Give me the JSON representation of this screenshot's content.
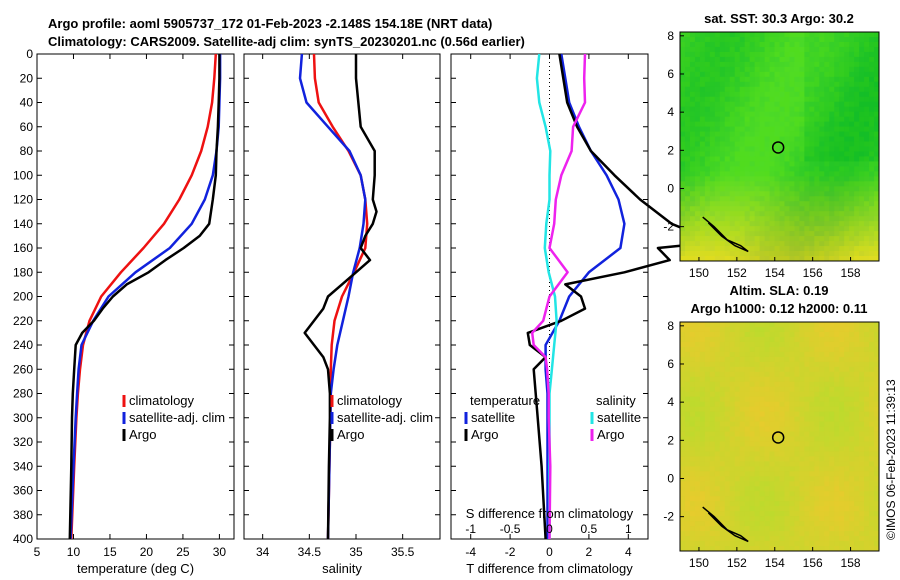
{
  "title_line1": "Argo profile: aoml 5905737_172 01-Feb-2023 -2.148S 154.18E (NRT data)",
  "title_line2": "Climatology: CARS2009. Satellite-adj clim: synTS_20230201.nc (0.56d earlier)",
  "copyright": "©IMOS 06-Feb-2023 11:39:13",
  "colors": {
    "clim": "#ee1111",
    "sat": "#1122dd",
    "argo": "#000000",
    "s_sat": "#22e5e5",
    "s_argo": "#ee22ee"
  },
  "chart_data": [
    {
      "type": "line",
      "id": "temperature",
      "xlabel": "temperature (deg C)",
      "ylabel": "",
      "xlim": [
        5,
        32
      ],
      "ylim": [
        400,
        0
      ],
      "xticks": [
        "5",
        "10",
        "15",
        "20",
        "25",
        "30"
      ],
      "yticks": [
        "0",
        "20",
        "40",
        "60",
        "80",
        "100",
        "120",
        "140",
        "160",
        "180",
        "200",
        "220",
        "240",
        "260",
        "280",
        "300",
        "320",
        "340",
        "360",
        "380",
        "400"
      ],
      "legend": [
        "climatology",
        "satellite-adj. clim",
        "Argo"
      ],
      "series": [
        {
          "name": "climatology",
          "depth": [
            0,
            20,
            40,
            60,
            80,
            100,
            120,
            140,
            160,
            180,
            200,
            220,
            240,
            260,
            280,
            300,
            340,
            400
          ],
          "values": [
            29.5,
            29.3,
            29,
            28.4,
            27.5,
            26.2,
            24.5,
            22.4,
            19.6,
            16.5,
            13.8,
            12.2,
            11.3,
            10.9,
            10.6,
            10.4,
            10.1,
            9.7
          ]
        },
        {
          "name": "satellite-adj. clim",
          "depth": [
            0,
            20,
            40,
            60,
            80,
            100,
            120,
            140,
            160,
            180,
            200,
            220,
            240,
            260,
            280,
            300,
            340,
            400
          ],
          "values": [
            30.1,
            30.1,
            30,
            29.9,
            29.6,
            29.1,
            28,
            26.2,
            23.2,
            18.5,
            14.8,
            12.7,
            11.1,
            10.7,
            10.5,
            10.3,
            10,
            9.6
          ]
        },
        {
          "name": "Argo",
          "depth": [
            0,
            20,
            40,
            60,
            80,
            100,
            120,
            140,
            150,
            160,
            170,
            180,
            190,
            200,
            210,
            220,
            230,
            240,
            260,
            280,
            300,
            340,
            400
          ],
          "values": [
            30,
            30,
            29.9,
            29.8,
            29.6,
            29.5,
            29.1,
            28.6,
            27.3,
            25.1,
            22.6,
            20.3,
            17.3,
            15.4,
            14,
            12.8,
            11.2,
            10.3,
            10.1,
            9.9,
            9.8,
            9.7,
            9.5
          ]
        }
      ]
    },
    {
      "type": "line",
      "id": "salinity",
      "xlabel": "salinity",
      "ylabel": "",
      "xlim": [
        33.8,
        35.9
      ],
      "ylim": [
        400,
        0
      ],
      "xticks": [
        "34",
        "34.5",
        "35",
        "35.5"
      ],
      "legend": [
        "climatology",
        "satellite-adj. clim",
        "Argo"
      ],
      "series": [
        {
          "name": "climatology",
          "depth": [
            0,
            20,
            40,
            60,
            80,
            100,
            120,
            140,
            160,
            180,
            200,
            220,
            240,
            260,
            280,
            320,
            400
          ],
          "values": [
            34.55,
            34.56,
            34.6,
            34.75,
            34.92,
            35.05,
            35.1,
            35.12,
            35.1,
            34.98,
            34.85,
            34.77,
            34.74,
            34.73,
            34.73,
            34.72,
            34.7
          ]
        },
        {
          "name": "satellite-adj. clim",
          "depth": [
            0,
            20,
            40,
            60,
            80,
            100,
            120,
            140,
            160,
            180,
            200,
            220,
            240,
            260,
            280,
            320,
            400
          ],
          "values": [
            34.42,
            34.4,
            34.47,
            34.7,
            34.93,
            35.05,
            35.1,
            35.08,
            35.04,
            34.97,
            34.92,
            34.86,
            34.8,
            34.76,
            34.73,
            34.72,
            34.7
          ]
        },
        {
          "name": "Argo",
          "depth": [
            0,
            20,
            60,
            80,
            100,
            120,
            130,
            140,
            150,
            160,
            170,
            180,
            190,
            200,
            210,
            220,
            230,
            240,
            250,
            260,
            280,
            300,
            340,
            400
          ],
          "values": [
            35.0,
            35.0,
            35.05,
            35.2,
            35.2,
            35.18,
            35.22,
            35.18,
            35.1,
            35.05,
            35.15,
            35.0,
            34.85,
            34.7,
            34.65,
            34.55,
            34.45,
            34.55,
            34.65,
            34.7,
            34.72,
            34.72,
            34.71,
            34.7
          ]
        }
      ]
    },
    {
      "type": "line",
      "id": "differences",
      "xlabel": "T difference from climatology",
      "top_xlabel": "S difference from climatology",
      "xlim": [
        -5,
        5
      ],
      "ylim": [
        400,
        0
      ],
      "xticks": [
        "-4",
        "-2",
        "0",
        "2",
        "4"
      ],
      "top_xticks": [
        "-1",
        "-0.5",
        "0",
        "0.5",
        "1"
      ],
      "top_xlim": [
        -1.25,
        1.25
      ],
      "legend": {
        "temperature_title": "temperature",
        "salinity_title": "salinity",
        "temperature": [
          "satellite",
          "Argo"
        ],
        "salinity": [
          "satellite",
          "Argo"
        ]
      },
      "series": [
        {
          "name": "T satellite",
          "axis": "T",
          "depth": [
            0,
            20,
            40,
            60,
            80,
            100,
            120,
            140,
            160,
            180,
            200,
            220,
            240,
            260,
            280,
            300,
            340,
            400
          ],
          "values": [
            0.6,
            0.8,
            1.0,
            1.5,
            2.1,
            2.9,
            3.5,
            3.8,
            3.6,
            2.0,
            1.0,
            0.5,
            -0.2,
            -0.2,
            -0.1,
            -0.1,
            -0.1,
            -0.1
          ]
        },
        {
          "name": "T Argo",
          "axis": "T",
          "depth": [
            0,
            20,
            40,
            60,
            80,
            100,
            120,
            140,
            150,
            155,
            160,
            170,
            180,
            190,
            200,
            210,
            220,
            230,
            240,
            250,
            260,
            280,
            300,
            340,
            400
          ],
          "values": [
            0.5,
            0.7,
            0.9,
            1.4,
            2.1,
            3.3,
            4.6,
            6.2,
            7.7,
            8.6,
            5.5,
            6.1,
            3.8,
            0.8,
            1.6,
            1.8,
            0.6,
            -1.1,
            -1.0,
            -0.2,
            -0.8,
            -0.7,
            -0.6,
            -0.4,
            -0.2
          ]
        },
        {
          "name": "S satellite",
          "axis": "S",
          "depth": [
            0,
            20,
            40,
            60,
            80,
            100,
            120,
            140,
            160,
            180,
            200,
            220,
            240,
            260,
            280,
            300,
            340,
            400
          ],
          "values": [
            -0.13,
            -0.16,
            -0.13,
            -0.05,
            0.01,
            0.0,
            0.0,
            -0.04,
            -0.06,
            -0.01,
            0.07,
            0.09,
            0.06,
            0.03,
            0.0,
            0.0,
            0.0,
            0.0
          ]
        },
        {
          "name": "S Argo",
          "axis": "S",
          "depth": [
            0,
            20,
            40,
            60,
            80,
            100,
            120,
            140,
            160,
            180,
            200,
            220,
            230,
            240,
            250,
            260,
            280,
            300,
            340,
            400
          ],
          "values": [
            0.45,
            0.44,
            0.45,
            0.3,
            0.28,
            0.15,
            0.08,
            0.06,
            0.0,
            0.23,
            0.0,
            -0.08,
            -0.22,
            -0.2,
            -0.05,
            -0.03,
            -0.01,
            -0.01,
            0.01,
            0.0
          ]
        }
      ]
    },
    {
      "type": "heatmap",
      "id": "sst_map",
      "title": "sat. SST: 30.3 Argo: 30.2",
      "xlim": [
        149,
        159.5
      ],
      "ylim": [
        -3.8,
        8.2
      ],
      "xticks": [
        "150",
        "152",
        "154",
        "156",
        "158"
      ],
      "yticks": [
        "-2",
        "0",
        "2",
        "4",
        "6",
        "8"
      ],
      "marker": {
        "lon": 154.18,
        "lat": 2.15
      }
    },
    {
      "type": "heatmap",
      "id": "sla_map",
      "title_line1": "Altim. SLA: 0.19",
      "title_line2": "Argo h1000: 0.12 h2000: 0.11",
      "xlim": [
        149,
        159.5
      ],
      "ylim": [
        -3.8,
        8.2
      ],
      "xticks": [
        "150",
        "152",
        "154",
        "156",
        "158"
      ],
      "yticks": [
        "-2",
        "0",
        "2",
        "4",
        "6",
        "8"
      ],
      "marker": {
        "lon": 154.18,
        "lat": 2.15
      }
    }
  ]
}
